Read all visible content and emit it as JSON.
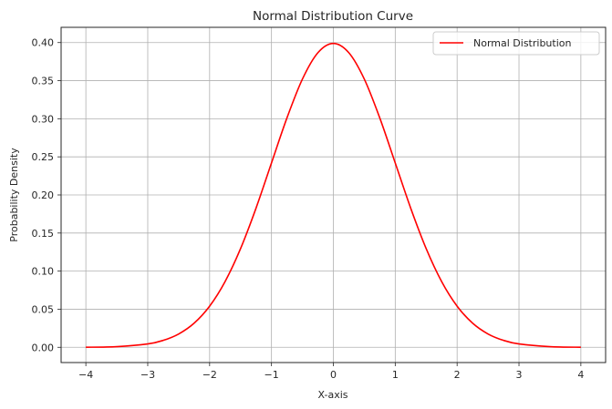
{
  "chart_data": {
    "type": "line",
    "title": "Normal Distribution Curve",
    "xlabel": "X-axis",
    "ylabel": "Probability Density",
    "xlim": [
      -4.4,
      4.4
    ],
    "ylim": [
      -0.02,
      0.42
    ],
    "xticks": [
      -4,
      -3,
      -2,
      -1,
      0,
      1,
      2,
      3,
      4
    ],
    "xtick_labels": [
      "−4",
      "−3",
      "−2",
      "−1",
      "0",
      "1",
      "2",
      "3",
      "4"
    ],
    "yticks": [
      0.0,
      0.05,
      0.1,
      0.15,
      0.2,
      0.25,
      0.3,
      0.35,
      0.4
    ],
    "ytick_labels": [
      "0.00",
      "0.05",
      "0.10",
      "0.15",
      "0.20",
      "0.25",
      "0.30",
      "0.35",
      "0.40"
    ],
    "grid": true,
    "legend_position": "top-right",
    "series": [
      {
        "name": "Normal Distribution",
        "color": "#ff0000",
        "x": [
          -4.0,
          -3.5,
          -3.0,
          -2.75,
          -2.5,
          -2.25,
          -2.0,
          -1.75,
          -1.5,
          -1.25,
          -1.0,
          -0.75,
          -0.5,
          -0.25,
          0.0,
          0.25,
          0.5,
          0.75,
          1.0,
          1.25,
          1.5,
          1.75,
          2.0,
          2.25,
          2.5,
          2.75,
          3.0,
          3.5,
          4.0
        ],
        "y": [
          0.0001,
          0.0009,
          0.0044,
          0.0091,
          0.0175,
          0.0317,
          0.054,
          0.0863,
          0.1295,
          0.1826,
          0.242,
          0.3011,
          0.3521,
          0.3867,
          0.3989,
          0.3867,
          0.3521,
          0.3011,
          0.242,
          0.1826,
          0.1295,
          0.0863,
          0.054,
          0.0317,
          0.0175,
          0.0091,
          0.0044,
          0.0009,
          0.0001
        ]
      }
    ]
  }
}
